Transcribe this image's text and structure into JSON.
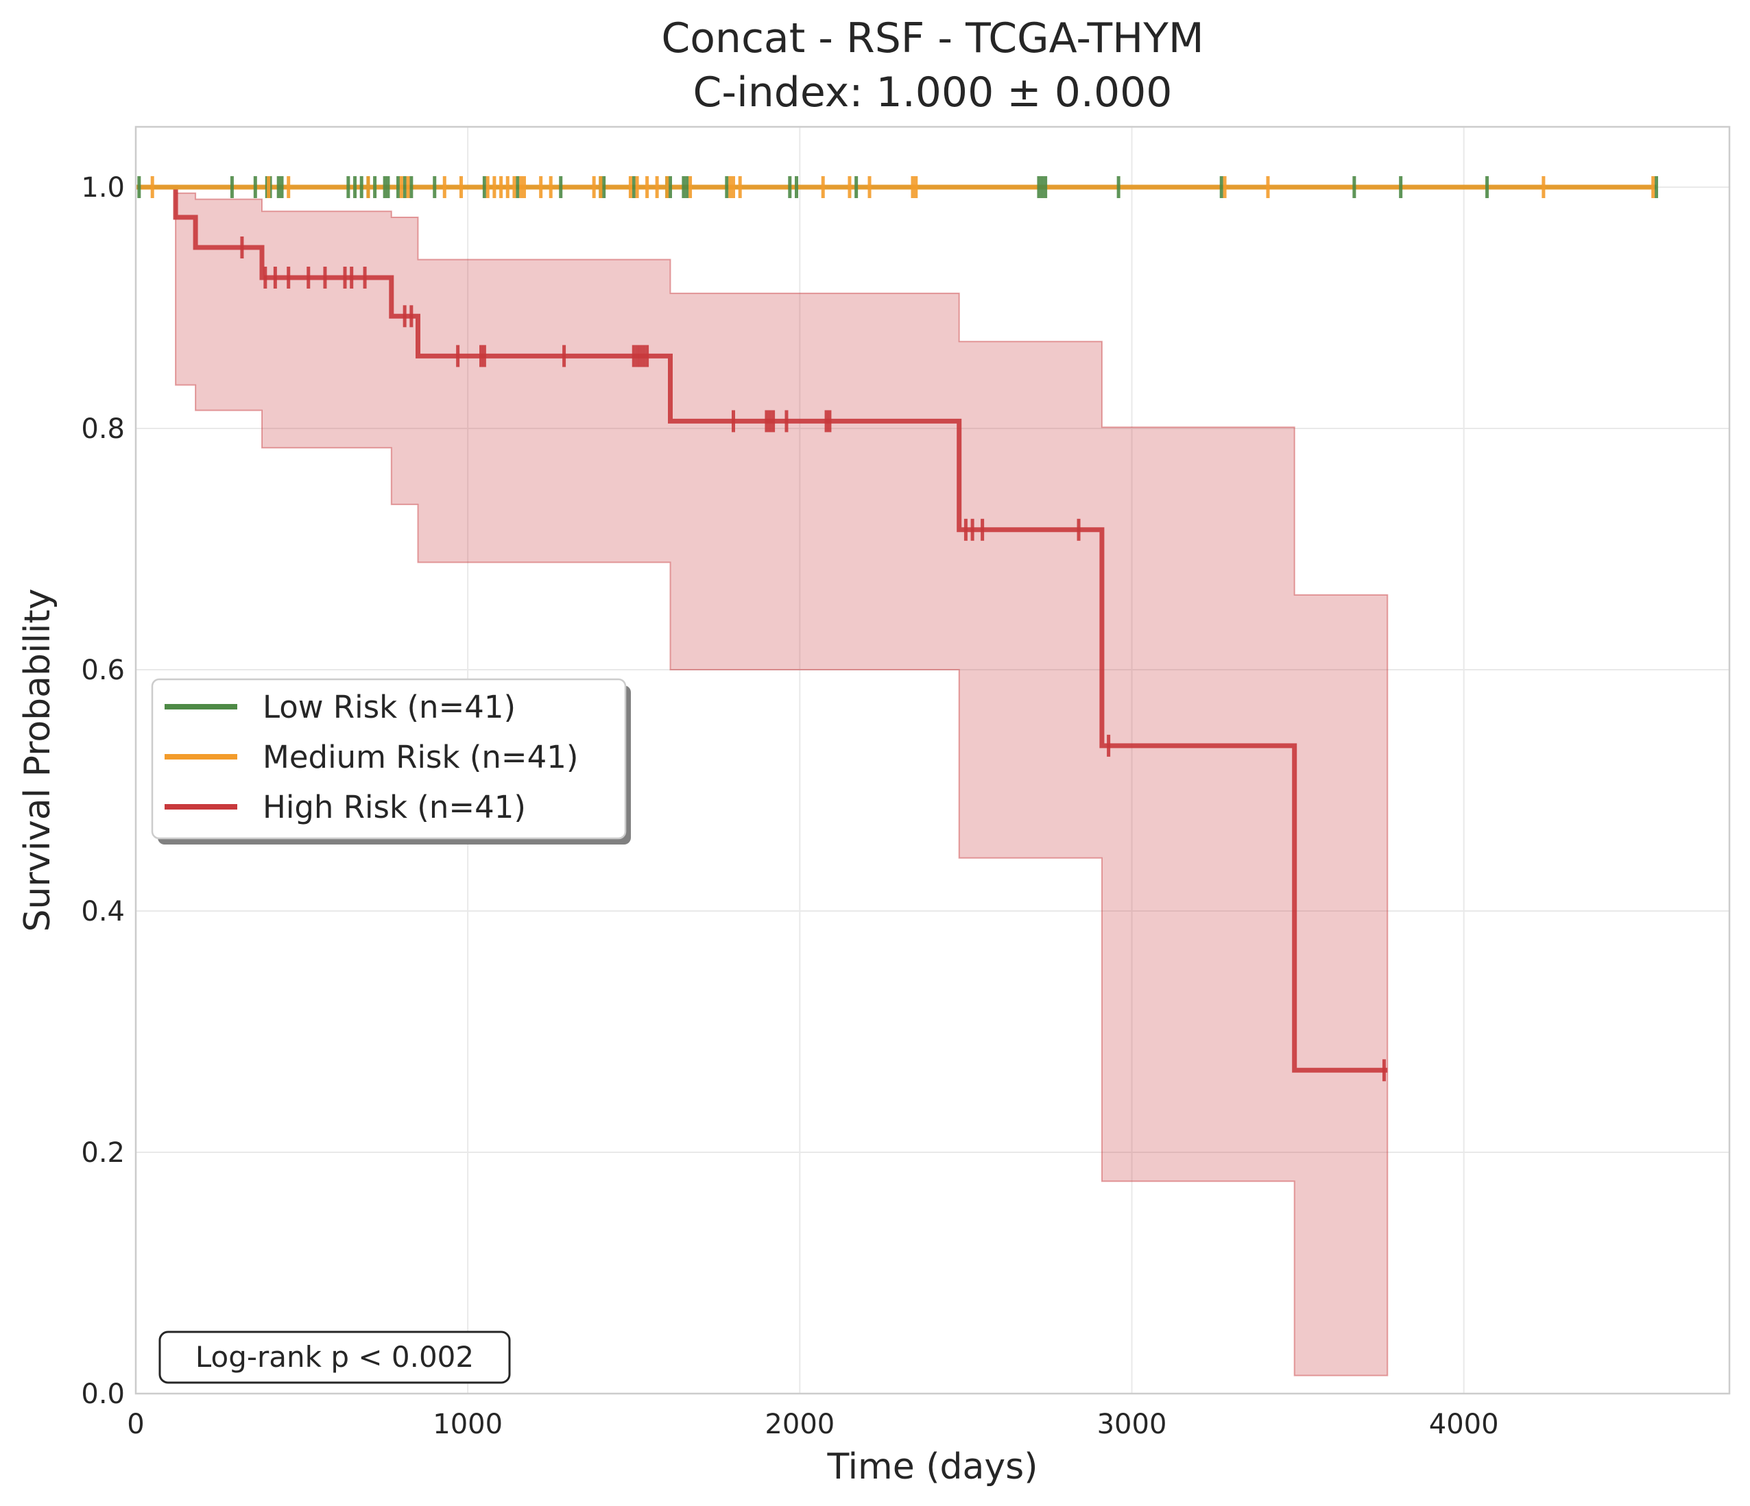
{
  "chart_data": {
    "type": "line",
    "title": "Concat - RSF - TCGA-THYM",
    "subtitle": "C-index: 1.000 ± 0.000",
    "xlabel": "Time (days)",
    "ylabel": "Survival Probability",
    "xlim": [
      0,
      4800
    ],
    "ylim": [
      0,
      1.05
    ],
    "x_ticks": [
      0,
      1000,
      2000,
      3000,
      4000
    ],
    "x_tick_labels": [
      "0",
      "1000",
      "2000",
      "3000",
      "4000"
    ],
    "y_ticks": [
      0,
      0.2,
      0.4,
      0.6,
      0.8,
      1.0
    ],
    "y_tick_labels": [
      "0.0",
      "0.2",
      "0.4",
      "0.6",
      "0.8",
      "1.0"
    ],
    "grid": true,
    "legend_position": "center-left",
    "annotation": "Log-rank p < 0.002",
    "series": [
      {
        "name": "Low Risk (n=41)",
        "color": "#4e8a46",
        "steps": [
          [
            0,
            1.0
          ],
          [
            4580,
            1.0
          ]
        ],
        "censor_times": [
          10,
          290,
          360,
          395,
          405,
          430,
          440,
          640,
          660,
          680,
          700,
          720,
          750,
          760,
          790,
          810,
          830,
          900,
          1050,
          1150,
          1280,
          1400,
          1410,
          1500,
          1600,
          1610,
          1650,
          1660,
          1780,
          1970,
          1990,
          2170,
          2720,
          2730,
          2740,
          2960,
          3270,
          3670,
          3810,
          4070,
          4580
        ]
      },
      {
        "name": "Medium Risk (n=41)",
        "color": "#f39c2b",
        "steps": [
          [
            0,
            1.0
          ],
          [
            4570,
            1.0
          ]
        ],
        "censor_times": [
          50,
          400,
          460,
          700,
          800,
          820,
          930,
          980,
          1060,
          1080,
          1100,
          1120,
          1140,
          1160,
          1170,
          1220,
          1250,
          1380,
          1400,
          1490,
          1510,
          1540,
          1570,
          1600,
          1670,
          1790,
          1800,
          1820,
          2070,
          2150,
          2210,
          2340,
          2350,
          3280,
          3410,
          4240,
          4570
        ]
      },
      {
        "name": "High Risk (n=41)",
        "color": "#c8393c",
        "steps": [
          [
            0,
            1.0
          ],
          [
            120,
            1.0
          ],
          [
            120,
            0.975
          ],
          [
            180,
            0.975
          ],
          [
            180,
            0.95
          ],
          [
            380,
            0.95
          ],
          [
            380,
            0.925
          ],
          [
            770,
            0.925
          ],
          [
            770,
            0.893
          ],
          [
            850,
            0.893
          ],
          [
            850,
            0.86
          ],
          [
            1610,
            0.86
          ],
          [
            1610,
            0.806
          ],
          [
            2480,
            0.806
          ],
          [
            2480,
            0.716
          ],
          [
            2910,
            0.716
          ],
          [
            2910,
            0.537
          ],
          [
            3490,
            0.537
          ],
          [
            3490,
            0.268
          ],
          [
            3770,
            0.268
          ]
        ],
        "censor_times": [
          320,
          390,
          420,
          460,
          520,
          570,
          630,
          650,
          690,
          810,
          830,
          970,
          1040,
          1050,
          1290,
          1500,
          1510,
          1520,
          1530,
          1540,
          1800,
          1900,
          1910,
          1920,
          1960,
          2080,
          2090,
          2500,
          2520,
          2550,
          2840,
          2930,
          3760
        ],
        "ci": [
          [
            0,
            1.0,
            1.0
          ],
          [
            120,
            0.836,
            0.995
          ],
          [
            180,
            0.815,
            0.99
          ],
          [
            380,
            0.784,
            0.98
          ],
          [
            770,
            0.737,
            0.975
          ],
          [
            850,
            0.689,
            0.94
          ],
          [
            1610,
            0.6,
            0.912
          ],
          [
            2480,
            0.444,
            0.872
          ],
          [
            2910,
            0.176,
            0.801
          ],
          [
            3490,
            0.015,
            0.662
          ],
          [
            3770,
            0.015,
            0.662
          ]
        ]
      }
    ]
  }
}
